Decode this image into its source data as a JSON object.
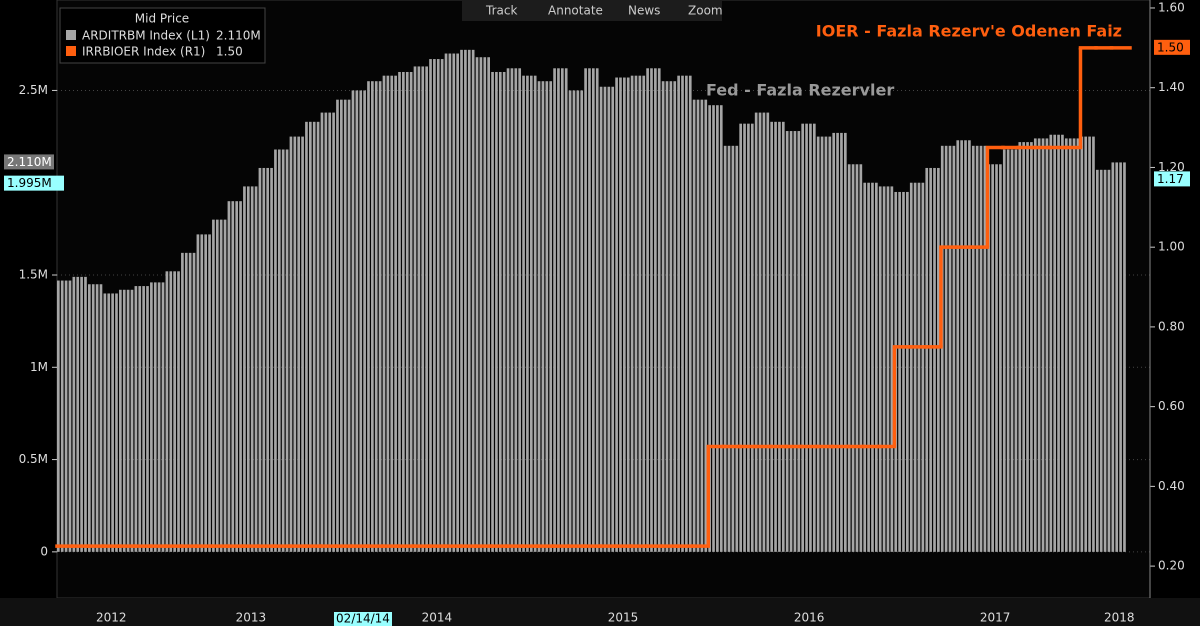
{
  "toolbar": [
    "Track",
    "Annotate",
    "News",
    "Zoom"
  ],
  "chart_data": {
    "type": "bar-step",
    "legend_title": "Mid Price",
    "annotations": [
      "IOER - Fazla Rezerv'e Odenen Faiz",
      "Fed - Fazla Rezervler"
    ],
    "cursor": {
      "date": "02/14/14",
      "left": {
        "value": 1.995,
        "label": "1.995M"
      },
      "right": {
        "value": 1.17,
        "label": "1.17"
      }
    },
    "categories": [
      null,
      null,
      null,
      "2012",
      null,
      null,
      null,
      null,
      null,
      null,
      null,
      null,
      "2013",
      null,
      null,
      null,
      null,
      null,
      null,
      null,
      null,
      null,
      null,
      null,
      "2014",
      null,
      null,
      null,
      null,
      null,
      null,
      null,
      null,
      null,
      null,
      null,
      "2015",
      null,
      null,
      null,
      null,
      null,
      null,
      null,
      null,
      null,
      null,
      null,
      "2016",
      null,
      null,
      null,
      null,
      null,
      null,
      null,
      null,
      null,
      null,
      null,
      "2017",
      null,
      null,
      null,
      null,
      null,
      null,
      null,
      "2018"
    ],
    "ylim": [
      -0.25,
      2.99
    ],
    "yticks": [
      0,
      {
        "value": 0.5,
        "label": "0.5M"
      },
      {
        "value": 1,
        "label": "1M"
      },
      {
        "value": 1.5,
        "label": "1.5M"
      },
      {
        "value": 2.5,
        "label": "2.5M"
      }
    ],
    "y2lim": [
      0.12,
      1.62
    ],
    "y2ticks": [
      {
        "value": 0.2,
        "label": "0.20"
      },
      {
        "value": 0.4,
        "label": "0.40"
      },
      {
        "value": 0.6,
        "label": "0.60"
      },
      {
        "value": 0.8,
        "label": "0.80"
      },
      {
        "value": 1.0,
        "label": "1.00"
      },
      {
        "value": 1.2,
        "label": "1.20"
      },
      {
        "value": 1.4,
        "label": "1.40"
      },
      {
        "value": 1.6,
        "label": "1.60"
      }
    ],
    "grid": true,
    "series": [
      {
        "name": "ARDITRBM Index  (L1)",
        "color": "#a6a6a6",
        "last_label": "2.110M",
        "last_value": 2.11,
        "values": [
          1.47,
          1.49,
          1.45,
          1.4,
          1.42,
          1.44,
          1.46,
          1.52,
          1.62,
          1.72,
          1.8,
          1.9,
          1.98,
          2.08,
          2.18,
          2.25,
          2.33,
          2.38,
          2.45,
          2.5,
          2.55,
          2.58,
          2.6,
          2.63,
          2.67,
          2.7,
          2.72,
          2.68,
          2.6,
          2.62,
          2.58,
          2.55,
          2.62,
          2.5,
          2.62,
          2.52,
          2.57,
          2.58,
          2.62,
          2.55,
          2.58,
          2.45,
          2.42,
          2.2,
          2.32,
          2.38,
          2.33,
          2.28,
          2.32,
          2.25,
          2.27,
          2.1,
          2.0,
          1.98,
          1.95,
          2.0,
          2.08,
          2.2,
          2.23,
          2.2,
          2.1,
          2.18,
          2.22,
          2.24,
          2.26,
          2.24,
          2.25,
          2.07,
          2.11
        ]
      },
      {
        "name": "IRRBIOER Index  (R1)",
        "color": "#ff5f0f",
        "axis": "y2",
        "last_label": "1.50",
        "last_value": 1.5,
        "values": [
          0.25,
          0.25,
          0.25,
          0.25,
          0.25,
          0.25,
          0.25,
          0.25,
          0.25,
          0.25,
          0.25,
          0.25,
          0.25,
          0.25,
          0.25,
          0.25,
          0.25,
          0.25,
          0.25,
          0.25,
          0.25,
          0.25,
          0.25,
          0.25,
          0.25,
          0.25,
          0.25,
          0.25,
          0.25,
          0.25,
          0.25,
          0.25,
          0.25,
          0.25,
          0.25,
          0.25,
          0.25,
          0.25,
          0.25,
          0.25,
          0.25,
          0.25,
          0.5,
          0.5,
          0.5,
          0.5,
          0.5,
          0.5,
          0.5,
          0.5,
          0.5,
          0.5,
          0.5,
          0.5,
          0.75,
          0.75,
          0.75,
          1.0,
          1.0,
          1.0,
          1.25,
          1.25,
          1.25,
          1.25,
          1.25,
          1.25,
          1.5,
          1.5,
          1.5
        ]
      }
    ]
  }
}
